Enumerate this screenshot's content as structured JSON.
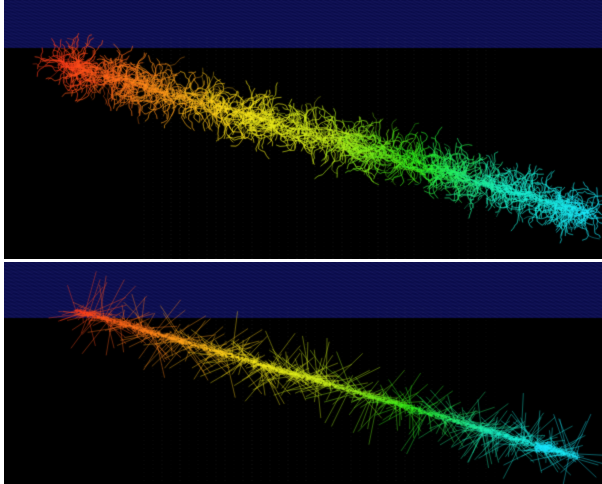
{
  "figure": {
    "panels": [
      {
        "id": "top",
        "description_style": "dense curly tracks"
      },
      {
        "id": "bottom",
        "description_style": "straighter spiky tracks"
      }
    ]
  },
  "colors": {
    "background": "#000000",
    "grid_band": "#0a0c4a",
    "grid_lines": "#3a3f9a",
    "detector_lines": "#9a9a9a",
    "gradient": [
      "#ff3a1a",
      "#ff8c1a",
      "#ffe81a",
      "#c8f01a",
      "#2ef01a",
      "#1af0c8",
      "#1ae8ff"
    ]
  }
}
